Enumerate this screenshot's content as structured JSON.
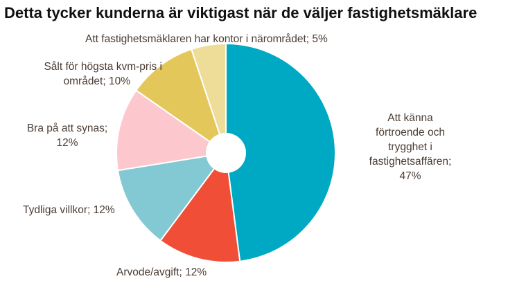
{
  "chart_data": {
    "type": "pie",
    "title": "Detta tycker kunderna är viktigast när de väljer fastighetsmäklare",
    "donut_hole": true,
    "slices": [
      {
        "label": "Att känna förtroende och trygghet i fastighetsaffären",
        "value": 47,
        "color": "#00a9c3"
      },
      {
        "label": "Arvode/avgift",
        "value": 12,
        "color": "#f04e37"
      },
      {
        "label": "Tydliga villkor",
        "value": 12,
        "color": "#82c9d3"
      },
      {
        "label": "Bra på att synas",
        "value": 12,
        "color": "#fdc8cd"
      },
      {
        "label": "Sålt för högsta kvm-pris i området",
        "value": 10,
        "color": "#e4c75a"
      },
      {
        "label": "Att fastighetsmäklaren har kontor i närområdet",
        "value": 5,
        "color": "#eedc99"
      }
    ]
  },
  "labels": {
    "slice0": [
      "Att känna",
      "förtroende och",
      "trygghet i",
      "fastighetsaffären;",
      "47%"
    ],
    "slice1": "Arvode/avgift; 12%",
    "slice2": "Tydliga villkor; 12%",
    "slice3": [
      "Bra på att synas;",
      "12%"
    ],
    "slice4": [
      "Sålt för högsta kvm-pris i",
      "området; 10%"
    ],
    "slice5": "Att fastighetsmäklaren har kontor i närområdet; 5%"
  }
}
